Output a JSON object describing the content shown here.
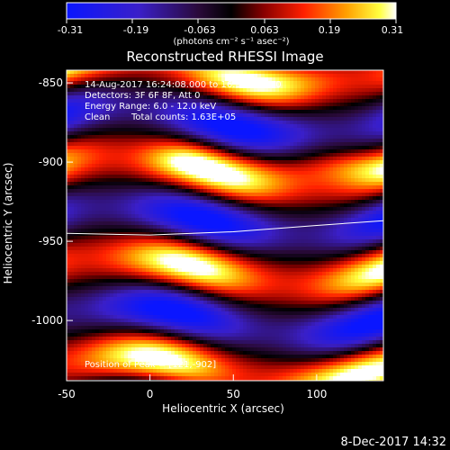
{
  "colorbar": {
    "ticks": [
      "-0.31",
      "-0.19",
      "-0.063",
      "0.063",
      "0.19",
      "0.31"
    ],
    "units": "(photons cm⁻² s⁻¹ asec⁻²)",
    "min": -0.31,
    "max": 0.31
  },
  "title": "Reconstructed RHESSI Image",
  "info": {
    "time_range": "14-Aug-2017 16:24:08.000 to 16:34:08.000",
    "detectors": "Detectors: 3F 6F 8F, Att 0",
    "energy": "Energy Range: 6.0 - 12.0 keV",
    "method": "Clean",
    "counts": "Total counts: 1.63E+05"
  },
  "peak": "Position of Peak = [121,-902]",
  "x_axis": {
    "label": "Heliocentric X (arcsec)",
    "ticks": [
      "-50",
      "0",
      "50",
      "100"
    ],
    "tick_values": [
      -50,
      0,
      50,
      100
    ],
    "range": [
      -50,
      140
    ]
  },
  "y_axis": {
    "label": "Heliocentric Y (arcsec)",
    "ticks": [
      "-850",
      "-900",
      "-950",
      "-1000"
    ],
    "tick_values": [
      -850,
      -900,
      -950,
      -1000
    ],
    "range": [
      -1038,
      -842
    ]
  },
  "limb_curve": [
    [
      -50,
      -945
    ],
    [
      0,
      -946
    ],
    [
      50,
      -944
    ],
    [
      100,
      -940
    ],
    [
      140,
      -937
    ]
  ],
  "timestamp": "8-Dec-2017 14:32",
  "colors": {
    "background": "#000000",
    "foreground": "#ffffff"
  }
}
